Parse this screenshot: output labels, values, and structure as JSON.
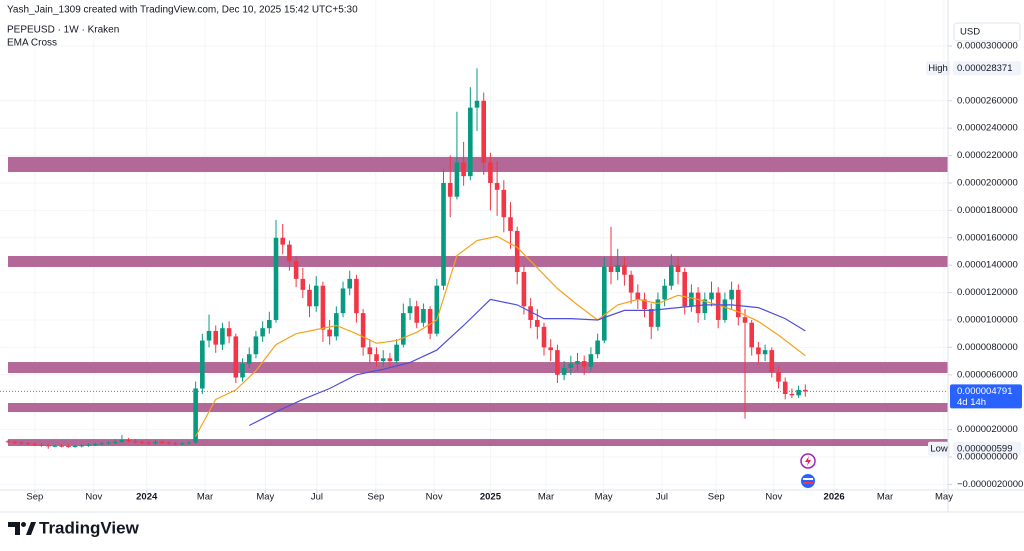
{
  "header": {
    "credit": "Yash_Jain_1309 created with TradingView.com, Dec 10, 2025 15:42 UTC+5:30",
    "symbol": "PEPEUSD · 1W · Kraken",
    "indicator": "EMA Cross"
  },
  "chart_data": {
    "type": "candlestick",
    "currency": "USD",
    "open": [
      1.15e-06,
      1.1e-06,
      1.05e-06,
      1e-06,
      9.5e-07,
      9e-07,
      8.5e-07,
      8e-07,
      8.2e-07,
      8e-07,
      7.8e-07,
      8e-07,
      8.5e-07,
      9e-07,
      9.5e-07,
      1e-06,
      1.05e-06,
      1.1e-06,
      1.25e-06,
      1.15e-06,
      1.1e-06,
      1.05e-06,
      1e-06,
      1.1e-06,
      1.05e-06,
      1e-06,
      9.5e-07,
      1e-06,
      1.05e-06,
      5e-06,
      8.5e-06,
      9.2e-06,
      8.2e-06,
      9.4e-06,
      8.8e-06,
      5.8e-06,
      6.8e-06,
      7.5e-06,
      8.8e-06,
      9.4e-06,
      1e-05,
      1.6e-05,
      1.55e-05,
      1.43e-05,
      1.3e-05,
      1.22e-05,
      1.1e-05,
      1.25e-05,
      9.3e-06,
      8.8e-06,
      1.05e-05,
      1.23e-05,
      1.3e-05,
      1.05e-05,
      8e-06,
      7.5e-06,
      7e-06,
      7.2e-06,
      7e-06,
      8.2e-06,
      1.05e-05,
      1.1e-05,
      9.8e-06,
      1.08e-05,
      9e-06,
      1.25e-05,
      2e-05,
      1.9e-05,
      2.15e-05,
      2.05e-05,
      2.55e-05,
      2.6e-05,
      2.15e-05,
      2e-05,
      1.95e-05,
      1.75e-05,
      1.65e-05,
      1.35e-05,
      1.1e-05,
      1e-05,
      9.5e-06,
      8e-06,
      7.8e-06,
      6e-06,
      6.5e-06,
      6.8e-06,
      7e-06,
      6.6e-06,
      7.5e-06,
      8.5e-06,
      1.39e-05,
      1.35e-05,
      1.4e-05,
      1.33e-05,
      1.2e-05,
      1.15e-05,
      1.08e-05,
      9.5e-06,
      1.15e-05,
      1.25e-05,
      1.4e-05,
      1.35e-05,
      1.1e-05,
      1.2e-05,
      1.05e-05,
      1.15e-05,
      1.2e-05,
      1e-05,
      1.15e-05,
      1.22e-05,
      1.02e-05,
      9.8e-06,
      8e-06,
      7.5e-06,
      7.8e-06,
      6.2e-06,
      5.5e-06,
      4.6e-06,
      4.5e-06,
      4.9e-06
    ],
    "high": [
      1.25e-06,
      1.2e-06,
      1.15e-06,
      1.1e-06,
      1.05e-06,
      1e-06,
      9.5e-07,
      9.2e-07,
      9.2e-07,
      9e-07,
      9e-07,
      9.5e-07,
      1e-06,
      1.05e-06,
      1.1e-06,
      1.15e-06,
      1.3e-06,
      1.6e-06,
      1.4e-06,
      1.3e-06,
      1.2e-06,
      1.15e-06,
      1.25e-06,
      1.2e-06,
      1.15e-06,
      1.1e-06,
      1.1e-06,
      1.15e-06,
      5.5e-06,
      9e-06,
      1.04e-05,
      9.6e-06,
      9.8e-06,
      9.9e-06,
      9e-06,
      7.2e-06,
      8e-06,
      9.2e-06,
      9.9e-06,
      1.06e-05,
      1.73e-05,
      1.7e-05,
      1.58e-05,
      1.46e-05,
      1.38e-05,
      1.26e-05,
      1.32e-05,
      1.28e-05,
      1e-05,
      1.1e-05,
      1.28e-05,
      1.36e-05,
      1.33e-05,
      1.08e-05,
      8.6e-06,
      8e-06,
      7.8e-06,
      7.6e-06,
      8.6e-06,
      1.12e-05,
      1.16e-05,
      1.14e-05,
      1.12e-05,
      1.1e-05,
      1.3e-05,
      2.1e-05,
      2.2e-05,
      2.52e-05,
      2.3e-05,
      2.7e-05,
      2.8371e-05,
      2.66e-05,
      2.22e-05,
      2.16e-05,
      2.02e-05,
      1.86e-05,
      1.68e-05,
      1.4e-05,
      1.16e-05,
      1.08e-05,
      9.8e-06,
      8.6e-06,
      8.2e-06,
      7e-06,
      7.4e-06,
      7.6e-06,
      7.4e-06,
      8e-06,
      9e-06,
      1.46e-05,
      1.68e-05,
      1.52e-05,
      1.46e-05,
      1.36e-05,
      1.26e-05,
      1.2e-05,
      1.12e-05,
      1.2e-05,
      1.3e-05,
      1.48e-05,
      1.46e-05,
      1.38e-05,
      1.26e-05,
      1.24e-05,
      1.2e-05,
      1.28e-05,
      1.24e-05,
      1.2e-05,
      1.28e-05,
      1.26e-05,
      1.08e-05,
      1e-05,
      8.4e-06,
      8.2e-06,
      8e-06,
      6.6e-06,
      5.8e-06,
      5e-06,
      5.2e-06,
      5.3e-06
    ],
    "low": [
      1e-06,
      9.5e-07,
      9e-07,
      8.5e-07,
      8e-07,
      7.5e-07,
      5.99e-07,
      7e-07,
      7e-07,
      6.8e-07,
      6.8e-07,
      7e-07,
      7.5e-07,
      8e-07,
      8.5e-07,
      9e-07,
      9.5e-07,
      1e-06,
      1.05e-06,
      1e-06,
      9.5e-07,
      9e-07,
      9e-07,
      9.5e-07,
      9e-07,
      8.5e-07,
      8.5e-07,
      9e-07,
      9.5e-07,
      4.6e-06,
      8e-06,
      7.6e-06,
      7.8e-06,
      8.3e-06,
      5.4e-06,
      5.5e-06,
      6.5e-06,
      7.2e-06,
      8.4e-06,
      9e-06,
      9.8e-06,
      1.48e-05,
      1.36e-05,
      1.24e-05,
      1.16e-05,
      1.02e-05,
      1.06e-05,
      8.4e-06,
      8.2e-06,
      8.5e-06,
      1.02e-05,
      1.18e-05,
      9.8e-06,
      7.4e-06,
      6.8e-06,
      6.6e-06,
      6.6e-06,
      6.5e-06,
      6.8e-06,
      8e-06,
      1e-05,
      9.4e-06,
      9.5e-06,
      8.6e-06,
      8.8e-06,
      1.22e-05,
      1.75e-05,
      1.88e-05,
      1.98e-05,
      2.02e-05,
      2.38e-05,
      2.06e-05,
      1.8e-05,
      1.76e-05,
      1.64e-05,
      1.52e-05,
      1.26e-05,
      1.04e-05,
      9.4e-06,
      8.6e-06,
      7.4e-06,
      7e-06,
      5.4e-06,
      5.6e-06,
      6e-06,
      6.3e-06,
      6e-06,
      6.3e-06,
      7.2e-06,
      8.3e-06,
      1.26e-05,
      1.29e-05,
      1.25e-05,
      1.12e-05,
      1.08e-05,
      1.02e-05,
      8.6e-06,
      9.2e-06,
      1.1e-05,
      1.22e-05,
      1.26e-05,
      1.04e-05,
      1.06e-05,
      9.8e-06,
      1e-05,
      1.1e-05,
      9.4e-06,
      9.8e-06,
      1.08e-05,
      9.6e-06,
      2.8e-06,
      7.4e-06,
      6.8e-06,
      7e-06,
      5.8e-06,
      5e-06,
      4.2e-06,
      4.3e-06,
      4.3e-06,
      4.4e-06
    ],
    "close": [
      1.1e-06,
      1.05e-06,
      1e-06,
      9.5e-07,
      9e-07,
      8.5e-07,
      8e-07,
      8.2e-07,
      8e-07,
      7.8e-07,
      8e-07,
      8.5e-07,
      9e-07,
      9.5e-07,
      1e-06,
      1.05e-06,
      1.1e-06,
      1.25e-06,
      1.15e-06,
      1.1e-06,
      1.05e-06,
      1e-06,
      1.1e-06,
      1.05e-06,
      1e-06,
      9.5e-07,
      1e-06,
      1.05e-06,
      5e-06,
      8.5e-06,
      9.2e-06,
      8.2e-06,
      9.4e-06,
      8.8e-06,
      5.8e-06,
      6.8e-06,
      7.5e-06,
      8.8e-06,
      9.4e-06,
      1e-05,
      1.6e-05,
      1.55e-05,
      1.43e-05,
      1.3e-05,
      1.22e-05,
      1.1e-05,
      1.25e-05,
      9.3e-06,
      8.8e-06,
      1.05e-05,
      1.23e-05,
      1.3e-05,
      1.05e-05,
      8e-06,
      7.5e-06,
      7e-06,
      7.2e-06,
      7e-06,
      8.2e-06,
      1.05e-05,
      1.1e-05,
      9.8e-06,
      1.08e-05,
      9e-06,
      1.25e-05,
      2e-05,
      1.9e-05,
      2.15e-05,
      2.05e-05,
      2.55e-05,
      2.6e-05,
      2.15e-05,
      2e-05,
      1.95e-05,
      1.75e-05,
      1.65e-05,
      1.35e-05,
      1.1e-05,
      1e-05,
      9.5e-06,
      8e-06,
      7.8e-06,
      6e-06,
      6.5e-06,
      6.8e-06,
      7e-06,
      6.6e-06,
      7.5e-06,
      8.5e-06,
      1.39e-05,
      1.35e-05,
      1.4e-05,
      1.33e-05,
      1.2e-05,
      1.15e-05,
      1.08e-05,
      9.5e-06,
      1.15e-05,
      1.25e-05,
      1.4e-05,
      1.35e-05,
      1.1e-05,
      1.2e-05,
      1.05e-05,
      1.15e-05,
      1.2e-05,
      1e-05,
      1.15e-05,
      1.22e-05,
      1.02e-05,
      9.8e-06,
      8e-06,
      7.5e-06,
      7.8e-06,
      6.2e-06,
      5.5e-06,
      4.6e-06,
      4.5e-06,
      4.9e-06,
      4.79e-06
    ],
    "up_color": "#089981",
    "down_color": "#f23645",
    "ema": [
      {
        "color": "#f7a21b",
        "x": [
          28,
          31,
          34,
          37,
          40,
          43,
          46,
          49,
          52,
          55,
          58,
          61,
          64,
          67,
          70,
          73,
          76,
          79,
          82,
          85,
          88,
          91,
          94,
          97,
          100,
          103,
          106,
          109,
          112,
          115,
          119
        ],
        "values": [
          1.5e-06,
          4.2e-06,
          4.9e-06,
          6.3e-06,
          8.2e-06,
          9e-06,
          9.3e-06,
          9.6e-06,
          9e-06,
          8.3e-06,
          8.5e-06,
          9.1e-06,
          1e-05,
          1.47e-05,
          1.58e-05,
          1.61e-05,
          1.53e-05,
          1.38e-05,
          1.23e-05,
          1.11e-05,
          1e-05,
          1.11e-05,
          1.15e-05,
          1.12e-05,
          1.18e-05,
          1.15e-05,
          1.11e-05,
          1.06e-05,
          9.9e-06,
          8.9e-06,
          7.4e-06
        ]
      },
      {
        "color": "#4f4fd9",
        "x": [
          36,
          40,
          44,
          48,
          52,
          56,
          60,
          64,
          68,
          72,
          76,
          80,
          84,
          88,
          92,
          96,
          100,
          104,
          108,
          112,
          116,
          119
        ],
        "values": [
          2.3e-06,
          3.3e-06,
          4.2e-06,
          5e-06,
          6e-06,
          6.4e-06,
          6.9e-06,
          7.8e-06,
          9.6e-06,
          1.15e-05,
          1.11e-05,
          1.01e-05,
          1.01e-05,
          1e-05,
          1.07e-05,
          1.07e-05,
          1.09e-05,
          1.11e-05,
          1.11e-05,
          1.09e-05,
          1.01e-05,
          9.2e-06
        ]
      }
    ],
    "zones": [
      [
        2.08e-05,
        2.19e-05
      ],
      [
        1.387e-05,
        1.467e-05
      ],
      [
        6.13e-06,
        6.93e-06
      ],
      [
        3.28e-06,
        3.94e-06
      ],
      [
        8e-07,
        1.31e-06
      ]
    ],
    "zone_color": "#a8538a",
    "xlim": [
      -1.2,
      140.3
    ],
    "xticks": [
      {
        "value": 4,
        "label": "Sep"
      },
      {
        "value": 12.8,
        "label": "Nov"
      },
      {
        "value": 20.7,
        "label": "2024"
      },
      {
        "value": 29.4,
        "label": "Mar"
      },
      {
        "value": 38.4,
        "label": "May"
      },
      {
        "value": 46.1,
        "label": "Jul"
      },
      {
        "value": 54.9,
        "label": "Sep"
      },
      {
        "value": 63.6,
        "label": "Nov"
      },
      {
        "value": 72,
        "label": "2025"
      },
      {
        "value": 80.3,
        "label": "Mar"
      },
      {
        "value": 88.9,
        "label": "May"
      },
      {
        "value": 97.6,
        "label": "Jul"
      },
      {
        "value": 105.7,
        "label": "Sep"
      },
      {
        "value": 114.3,
        "label": "Nov"
      },
      {
        "value": 123.3,
        "label": "2026"
      },
      {
        "value": 130.9,
        "label": "Mar"
      },
      {
        "value": 139.7,
        "label": "May"
      }
    ],
    "ylim": [
      -2.41e-06,
      3.175e-05
    ],
    "yticks": [
      {
        "value": 3e-05,
        "label": "0.0000300000"
      },
      {
        "value": 2.6e-05,
        "label": "0.0000260000"
      },
      {
        "value": 2.4e-05,
        "label": "0.0000240000"
      },
      {
        "value": 2.2e-05,
        "label": "0.0000220000"
      },
      {
        "value": 2e-05,
        "label": "0.0000200000"
      },
      {
        "value": 1.8e-05,
        "label": "0.0000180000"
      },
      {
        "value": 1.6e-05,
        "label": "0.0000160000"
      },
      {
        "value": 1.4e-05,
        "label": "0.0000140000"
      },
      {
        "value": 1.2e-05,
        "label": "0.0000120000"
      },
      {
        "value": 1e-05,
        "label": "0.0000100000"
      },
      {
        "value": 8e-06,
        "label": "0.0000080000"
      },
      {
        "value": 6e-06,
        "label": "0.0000060000"
      },
      {
        "value": 2e-06,
        "label": "0.0000020000"
      },
      {
        "value": 0,
        "label": "0.0000000000"
      },
      {
        "value": -2e-06,
        "label": "−0.0000020000"
      }
    ],
    "grid": true,
    "price_labels": {
      "high": {
        "label": "High",
        "price": {
          "value": 2.8371e-05,
          "label": "0.000028371"
        }
      },
      "last": {
        "price": {
          "value": 4.791e-06,
          "label": "0.000004791"
        },
        "countdown": "4d 14h",
        "color": "#2962ff"
      },
      "low": {
        "label": "Low",
        "price": {
          "value": 5.99e-07,
          "label": "0.000000599"
        }
      }
    }
  },
  "footer": {
    "brand": "TradingView"
  }
}
